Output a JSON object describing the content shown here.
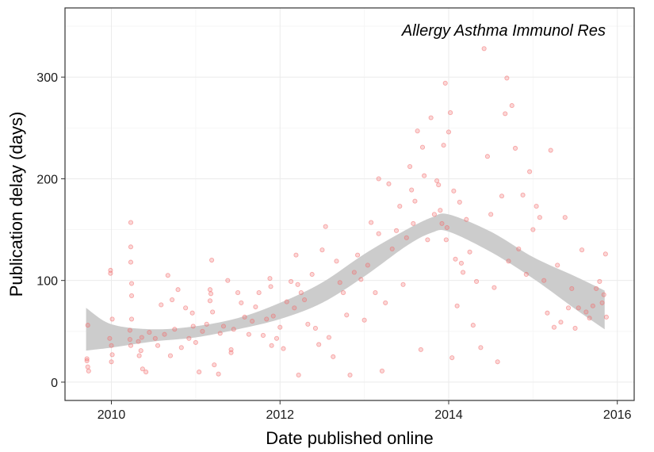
{
  "chart_data": {
    "type": "scatter",
    "annotation": "Allergy Asthma Immunol Res",
    "xlabel": "Date published online",
    "ylabel": "Publication delay (days)",
    "xlim": [
      2009.45,
      2016.2
    ],
    "ylim": [
      -18,
      368
    ],
    "x_ticks": [
      2010,
      2012,
      2014,
      2016
    ],
    "x_tick_labels": [
      "2010",
      "2012",
      "2014",
      "2016"
    ],
    "y_ticks": [
      0,
      100,
      200,
      300
    ],
    "y_tick_labels": [
      "0",
      "100",
      "200",
      "300"
    ],
    "grid": true,
    "point_color": "#f26d6d",
    "band_color": "#cccccc",
    "smooth_band": [
      {
        "x": 2009.7,
        "lower": 31,
        "upper": 73
      },
      {
        "x": 2010.0,
        "lower": 34,
        "upper": 57
      },
      {
        "x": 2010.5,
        "lower": 40,
        "upper": 52
      },
      {
        "x": 2011.0,
        "lower": 44,
        "upper": 55
      },
      {
        "x": 2011.5,
        "lower": 52,
        "upper": 63
      },
      {
        "x": 2012.0,
        "lower": 62,
        "upper": 78
      },
      {
        "x": 2012.5,
        "lower": 78,
        "upper": 98
      },
      {
        "x": 2013.0,
        "lower": 104,
        "upper": 126
      },
      {
        "x": 2013.5,
        "lower": 134,
        "upper": 150
      },
      {
        "x": 2013.8,
        "lower": 147,
        "upper": 162
      },
      {
        "x": 2014.0,
        "lower": 148,
        "upper": 165
      },
      {
        "x": 2014.5,
        "lower": 128,
        "upper": 148
      },
      {
        "x": 2015.0,
        "lower": 102,
        "upper": 123
      },
      {
        "x": 2015.5,
        "lower": 72,
        "upper": 104
      },
      {
        "x": 2015.85,
        "lower": 52,
        "upper": 90
      }
    ],
    "points": [
      [
        2009.72,
        56
      ],
      [
        2009.71,
        23
      ],
      [
        2009.72,
        15
      ],
      [
        2009.73,
        11
      ],
      [
        2009.71,
        21
      ],
      [
        2009.99,
        107
      ],
      [
        2009.99,
        110
      ],
      [
        2009.98,
        43
      ],
      [
        2010.0,
        36
      ],
      [
        2010.0,
        20
      ],
      [
        2010.01,
        62
      ],
      [
        2010.01,
        27
      ],
      [
        2010.22,
        42
      ],
      [
        2010.22,
        51
      ],
      [
        2010.23,
        36
      ],
      [
        2010.23,
        157
      ],
      [
        2010.23,
        133
      ],
      [
        2010.23,
        118
      ],
      [
        2010.24,
        97
      ],
      [
        2010.24,
        85
      ],
      [
        2010.24,
        62
      ],
      [
        2010.32,
        40
      ],
      [
        2010.33,
        26
      ],
      [
        2010.35,
        31
      ],
      [
        2010.36,
        44
      ],
      [
        2010.37,
        13
      ],
      [
        2010.41,
        10
      ],
      [
        2010.45,
        49
      ],
      [
        2010.52,
        43
      ],
      [
        2010.55,
        36
      ],
      [
        2010.59,
        76
      ],
      [
        2010.63,
        47
      ],
      [
        2010.67,
        105
      ],
      [
        2010.7,
        26
      ],
      [
        2010.72,
        81
      ],
      [
        2010.75,
        52
      ],
      [
        2010.79,
        91
      ],
      [
        2010.83,
        34
      ],
      [
        2010.88,
        73
      ],
      [
        2010.92,
        43
      ],
      [
        2010.96,
        68
      ],
      [
        2010.97,
        55
      ],
      [
        2011.0,
        39
      ],
      [
        2011.04,
        10
      ],
      [
        2011.08,
        50
      ],
      [
        2011.13,
        57
      ],
      [
        2011.17,
        91
      ],
      [
        2011.17,
        80
      ],
      [
        2011.18,
        87
      ],
      [
        2011.19,
        120
      ],
      [
        2011.2,
        69
      ],
      [
        2011.22,
        17
      ],
      [
        2011.27,
        8
      ],
      [
        2011.29,
        48
      ],
      [
        2011.33,
        55
      ],
      [
        2011.38,
        100
      ],
      [
        2011.42,
        32
      ],
      [
        2011.42,
        29
      ],
      [
        2011.45,
        52
      ],
      [
        2011.5,
        88
      ],
      [
        2011.54,
        78
      ],
      [
        2011.58,
        64
      ],
      [
        2011.63,
        47
      ],
      [
        2011.67,
        60
      ],
      [
        2011.71,
        74
      ],
      [
        2011.75,
        88
      ],
      [
        2011.8,
        46
      ],
      [
        2011.84,
        62
      ],
      [
        2011.88,
        102
      ],
      [
        2011.89,
        94
      ],
      [
        2011.9,
        36
      ],
      [
        2011.92,
        65
      ],
      [
        2011.96,
        43
      ],
      [
        2012.0,
        54
      ],
      [
        2012.04,
        33
      ],
      [
        2012.08,
        79
      ],
      [
        2012.13,
        99
      ],
      [
        2012.17,
        73
      ],
      [
        2012.19,
        125
      ],
      [
        2012.21,
        96
      ],
      [
        2012.22,
        7
      ],
      [
        2012.25,
        88
      ],
      [
        2012.29,
        81
      ],
      [
        2012.33,
        57
      ],
      [
        2012.38,
        106
      ],
      [
        2012.42,
        53
      ],
      [
        2012.46,
        37
      ],
      [
        2012.5,
        130
      ],
      [
        2012.54,
        153
      ],
      [
        2012.58,
        44
      ],
      [
        2012.63,
        25
      ],
      [
        2012.67,
        119
      ],
      [
        2012.71,
        98
      ],
      [
        2012.75,
        88
      ],
      [
        2012.79,
        66
      ],
      [
        2012.83,
        7
      ],
      [
        2012.88,
        108
      ],
      [
        2012.92,
        125
      ],
      [
        2012.96,
        101
      ],
      [
        2013.0,
        61
      ],
      [
        2013.04,
        115
      ],
      [
        2013.08,
        157
      ],
      [
        2013.13,
        88
      ],
      [
        2013.17,
        200
      ],
      [
        2013.17,
        146
      ],
      [
        2013.21,
        11
      ],
      [
        2013.25,
        78
      ],
      [
        2013.29,
        195
      ],
      [
        2013.33,
        131
      ],
      [
        2013.38,
        149
      ],
      [
        2013.42,
        173
      ],
      [
        2013.46,
        96
      ],
      [
        2013.5,
        142
      ],
      [
        2013.54,
        212
      ],
      [
        2013.56,
        189
      ],
      [
        2013.58,
        156
      ],
      [
        2013.6,
        178
      ],
      [
        2013.63,
        247
      ],
      [
        2013.67,
        32
      ],
      [
        2013.69,
        231
      ],
      [
        2013.71,
        203
      ],
      [
        2013.75,
        140
      ],
      [
        2013.79,
        260
      ],
      [
        2013.83,
        165
      ],
      [
        2013.86,
        198
      ],
      [
        2013.88,
        194
      ],
      [
        2013.9,
        169
      ],
      [
        2013.92,
        156
      ],
      [
        2013.94,
        233
      ],
      [
        2013.96,
        294
      ],
      [
        2013.97,
        140
      ],
      [
        2013.98,
        152
      ],
      [
        2014.0,
        246
      ],
      [
        2014.02,
        265
      ],
      [
        2014.04,
        24
      ],
      [
        2014.06,
        188
      ],
      [
        2014.08,
        121
      ],
      [
        2014.1,
        75
      ],
      [
        2014.13,
        177
      ],
      [
        2014.15,
        117
      ],
      [
        2014.17,
        108
      ],
      [
        2014.21,
        160
      ],
      [
        2014.25,
        128
      ],
      [
        2014.29,
        56
      ],
      [
        2014.33,
        99
      ],
      [
        2014.38,
        34
      ],
      [
        2014.42,
        328
      ],
      [
        2014.46,
        222
      ],
      [
        2014.5,
        165
      ],
      [
        2014.54,
        93
      ],
      [
        2014.58,
        20
      ],
      [
        2014.63,
        183
      ],
      [
        2014.67,
        264
      ],
      [
        2014.69,
        299
      ],
      [
        2014.71,
        119
      ],
      [
        2014.75,
        272
      ],
      [
        2014.79,
        230
      ],
      [
        2014.83,
        131
      ],
      [
        2014.88,
        184
      ],
      [
        2014.92,
        106
      ],
      [
        2014.96,
        207
      ],
      [
        2015.0,
        150
      ],
      [
        2015.04,
        173
      ],
      [
        2015.08,
        162
      ],
      [
        2015.13,
        100
      ],
      [
        2015.17,
        68
      ],
      [
        2015.21,
        228
      ],
      [
        2015.25,
        54
      ],
      [
        2015.29,
        115
      ],
      [
        2015.33,
        59
      ],
      [
        2015.38,
        162
      ],
      [
        2015.42,
        73
      ],
      [
        2015.46,
        92
      ],
      [
        2015.5,
        53
      ],
      [
        2015.54,
        73
      ],
      [
        2015.58,
        130
      ],
      [
        2015.63,
        69
      ],
      [
        2015.67,
        63
      ],
      [
        2015.71,
        75
      ],
      [
        2015.75,
        92
      ],
      [
        2015.79,
        99
      ],
      [
        2015.82,
        78
      ],
      [
        2015.84,
        86
      ],
      [
        2015.86,
        126
      ],
      [
        2015.87,
        64
      ]
    ]
  }
}
